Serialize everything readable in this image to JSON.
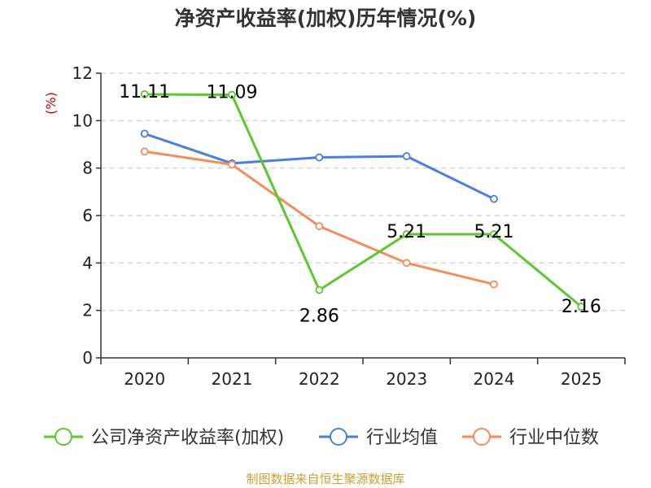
{
  "chart_data": {
    "type": "line",
    "title": "净资产收益率(加权)历年情况(%)",
    "ylabel": "(%)",
    "xlabel": "",
    "categories": [
      "2020",
      "2021",
      "2022",
      "2023",
      "2024",
      "2025"
    ],
    "ylim": [
      0,
      12
    ],
    "yticks": [
      0,
      2,
      4,
      6,
      8,
      10,
      12
    ],
    "grid": true,
    "legend_position": "bottom",
    "series": [
      {
        "name": "公司净资产收益率(加权)",
        "color": "#5cc72e",
        "values": [
          11.11,
          11.09,
          2.86,
          5.21,
          5.21,
          2.16
        ],
        "labels": [
          "11.11",
          "11.09",
          "2.86",
          "5.21",
          "5.21",
          "2.16"
        ]
      },
      {
        "name": "行业均值",
        "color": "#4a7fdc",
        "values": [
          9.45,
          8.2,
          8.45,
          8.5,
          6.7,
          null
        ]
      },
      {
        "name": "行业中位数",
        "color": "#f28e5b",
        "values": [
          8.7,
          8.15,
          5.55,
          4.0,
          3.1,
          null
        ]
      }
    ]
  },
  "source": "制图数据来自恒生聚源数据库"
}
